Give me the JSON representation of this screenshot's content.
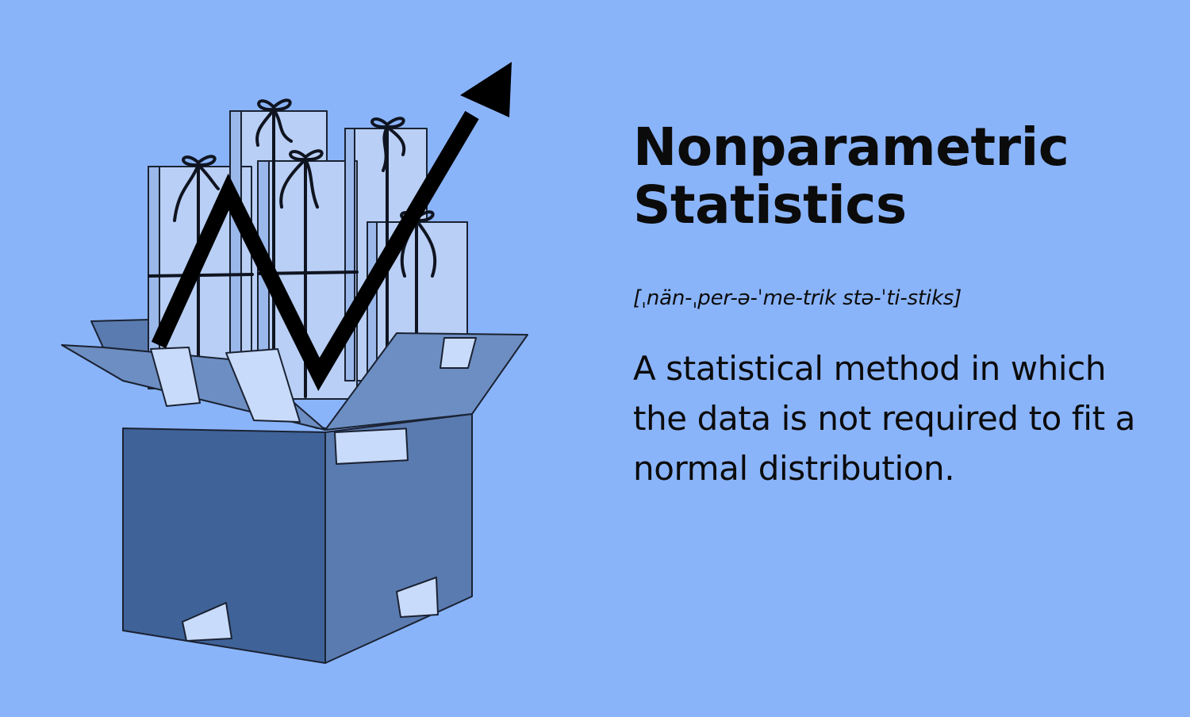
{
  "background_color": "#8ab4fa",
  "illustration": {
    "icon": "gift-box-trend-icon",
    "box_colors": {
      "front": "#3f6298",
      "side": "#5a7bb0",
      "flap": "#6d8ec2",
      "gifts": "#b9cff5",
      "gifts_shade": "#9bb8ea",
      "tape": "#c9dbfb",
      "outline": "#1a2232"
    },
    "arrow_color": "#000000"
  },
  "term": {
    "line1": "Nonparametric",
    "line2": "Statistics"
  },
  "pronunciation": "[ˌnän-ˌper-ə-ˈme-trik stə-ˈti-stiks]",
  "definition": "A statistical method in which the data is not required to fit a normal distribution."
}
